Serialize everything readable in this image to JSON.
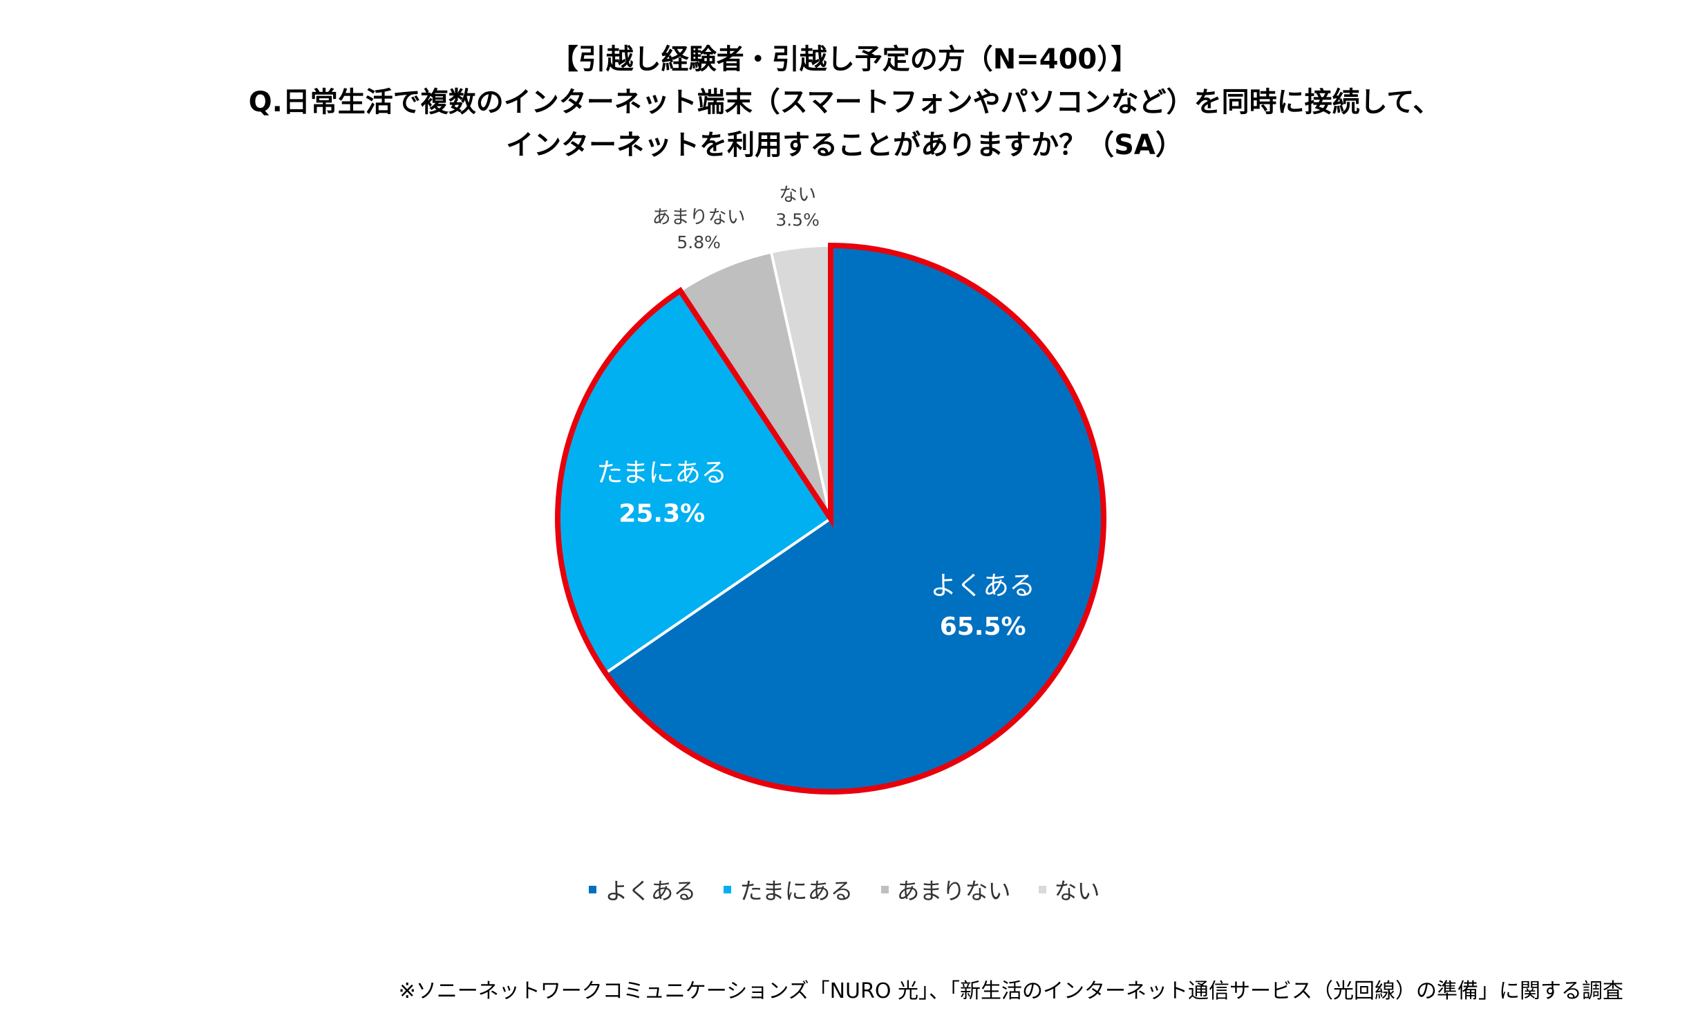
{
  "title": {
    "line1": "【引越し経験者・引越し予定の方（N=400）】",
    "line2": "Q.日常生活で複数のインターネット端末（スマートフォンやパソコンなど）を同時に接続して、",
    "line3": "インターネットを利用することがありますか？（SA）"
  },
  "chart_data": {
    "type": "pie",
    "slices": [
      {
        "label": "よくある",
        "value": 65.5,
        "value_label": "65.5%",
        "color": "#0070C0",
        "label_color": "#ffffff"
      },
      {
        "label": "たまにある",
        "value": 25.3,
        "value_label": "25.3%",
        "color": "#00B0F0",
        "label_color": "#ffffff"
      },
      {
        "label": "あまりない",
        "value": 5.8,
        "value_label": "5.8%",
        "color": "#BFBFBF",
        "label_color": "#404040"
      },
      {
        "label": "ない",
        "value": 3.5,
        "value_label": "3.5%",
        "color": "#D9D9D9",
        "label_color": "#404040"
      }
    ],
    "highlight_color": "#E8000B",
    "legend_position": "bottom"
  },
  "legend": {
    "items": [
      {
        "label": "よくある",
        "color": "#0070C0"
      },
      {
        "label": "たまにある",
        "color": "#00B0F0"
      },
      {
        "label": "あまりない",
        "color": "#BFBFBF"
      },
      {
        "label": "ない",
        "color": "#D9D9D9"
      }
    ]
  },
  "footnote": "※ソニーネットワークコミュニケーションズ「NURO 光」、「新生活のインターネット通信サービス（光回線）の準備」に関する調査"
}
